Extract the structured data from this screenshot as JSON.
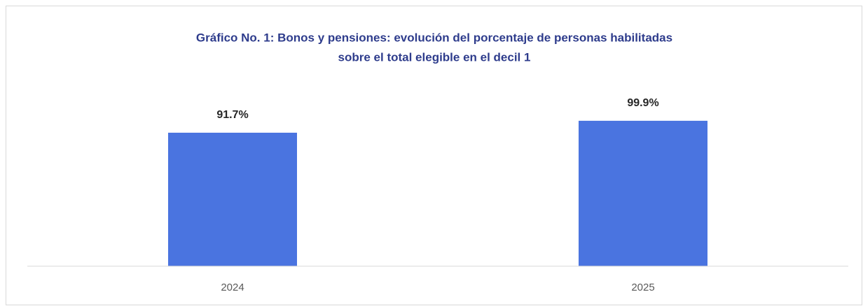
{
  "chart_data": {
    "type": "bar",
    "title": [
      "Gráfico No. 1: Bonos y pensiones: evolución del porcentaje de personas habilitadas",
      "sobre el total elegible en el decil 1"
    ],
    "categories": [
      "2024",
      "2025"
    ],
    "values": [
      91.7,
      99.9
    ],
    "value_labels": [
      "91.7%",
      "99.9%"
    ],
    "color": "#4a74e0",
    "ylim": [
      0,
      120
    ],
    "grid": false
  }
}
